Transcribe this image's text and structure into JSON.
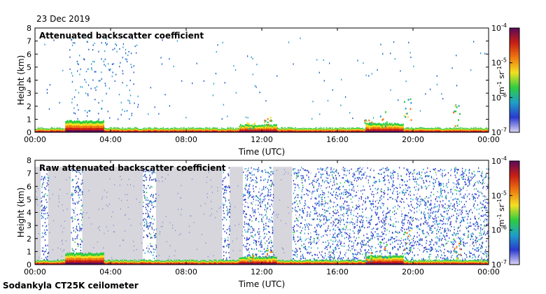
{
  "date": "23 Dec 2019",
  "site_label": "Sodankyla CT25K ceilometer",
  "chart_data": [
    {
      "type": "heatmap",
      "title": "Attenuated backscatter coefficient",
      "xlabel": "Time (UTC)",
      "ylabel": "Height (km)",
      "xticks": [
        "00:00",
        "04:00",
        "08:00",
        "12:00",
        "16:00",
        "20:00",
        "00:00"
      ],
      "xlim_hours": [
        0,
        24
      ],
      "ylim": [
        0,
        8
      ],
      "yticks": [
        0,
        1,
        2,
        3,
        4,
        5,
        6,
        7,
        8
      ],
      "colorbar": {
        "label": "m-1 sr-1",
        "scale": "log",
        "range": [
          1e-07,
          0.0001
        ],
        "ticks": [
          "10-7",
          "10-6",
          "10-5",
          "10-4"
        ]
      }
    },
    {
      "type": "heatmap",
      "title": "Raw attenuated backscatter coefficient",
      "xlabel": "Time (UTC)",
      "ylabel": "Height (km)",
      "xticks": [
        "00:00",
        "04:00",
        "08:00",
        "12:00",
        "16:00",
        "20:00",
        "00:00"
      ],
      "xlim_hours": [
        0,
        24
      ],
      "ylim": [
        0,
        8
      ],
      "yticks": [
        0,
        1,
        2,
        3,
        4,
        5,
        6,
        7,
        8
      ],
      "colorbar": {
        "label": "m-1 sr-1",
        "scale": "log",
        "range": [
          1e-07,
          0.0001
        ],
        "ticks": [
          "10-7",
          "10-6",
          "10-5",
          "10-4"
        ]
      }
    }
  ],
  "colorbar_colors": [
    "#dcd4f5",
    "#2a3ad0",
    "#1ea0c8",
    "#2ecc40",
    "#f2e020",
    "#f07a10",
    "#c81e14",
    "#5a0a5a"
  ]
}
